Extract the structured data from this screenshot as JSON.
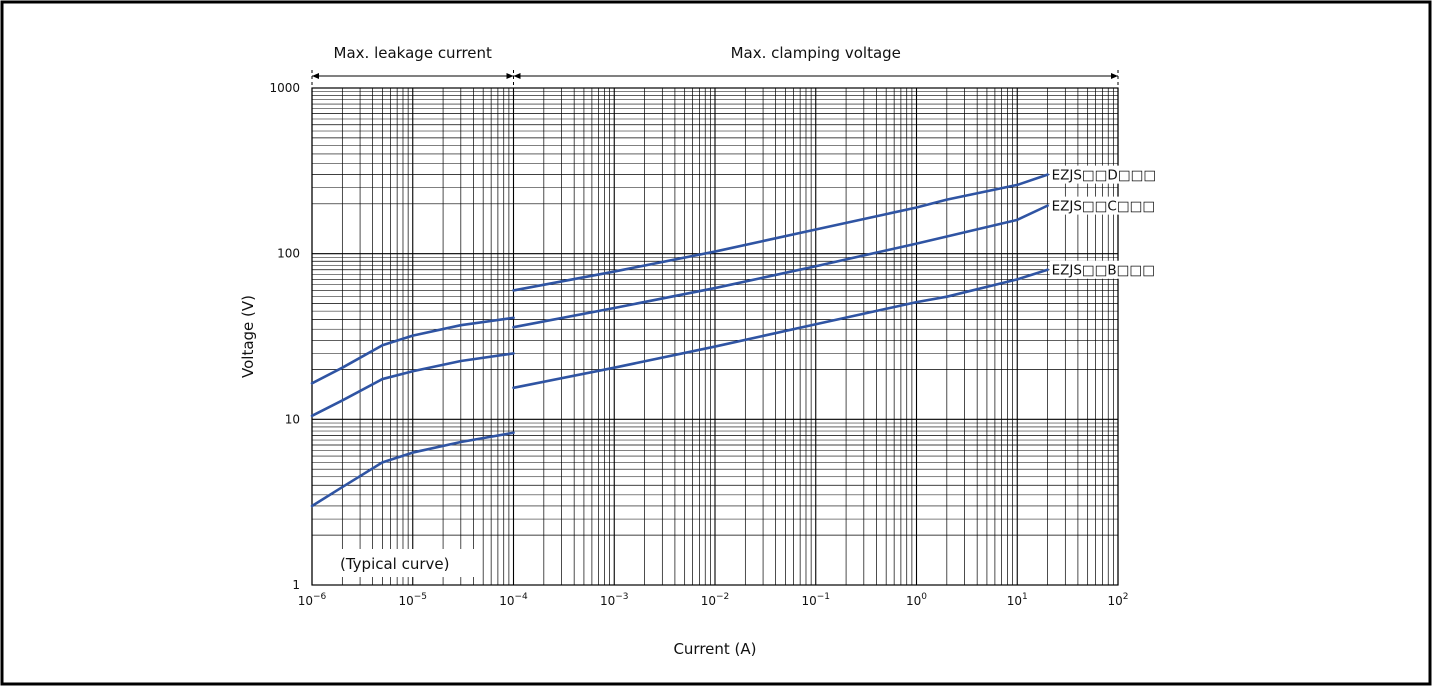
{
  "chart_data": {
    "type": "line",
    "xlabel": "Current (A)",
    "ylabel": "Voltage (V)",
    "x_scale": "log",
    "y_scale": "log",
    "xlim": [
      1e-06,
      100
    ],
    "ylim": [
      1,
      1000
    ],
    "x_ticks": [
      {
        "base": "10",
        "exp": "−6"
      },
      {
        "base": "10",
        "exp": "−5"
      },
      {
        "base": "10",
        "exp": "−4"
      },
      {
        "base": "10",
        "exp": "−3"
      },
      {
        "base": "10",
        "exp": "−2"
      },
      {
        "base": "10",
        "exp": "−1"
      },
      {
        "base": "10",
        "exp": "0"
      },
      {
        "base": "10",
        "exp": "1"
      },
      {
        "base": "10",
        "exp": "2"
      }
    ],
    "y_ticks": [
      "1",
      "10",
      "100",
      "1000"
    ],
    "grid": true,
    "regions": [
      {
        "label": "Max. leakage current",
        "x_range": [
          1e-06,
          0.0001
        ]
      },
      {
        "label": "Max. clamping voltage",
        "x_range": [
          0.0001,
          100
        ]
      }
    ],
    "note": "(Typical curve)",
    "series": [
      {
        "name": "EZJS□□D□□□",
        "color": "#2f54a3",
        "segments": [
          [
            [
              1e-06,
              16.5
            ],
            [
              2e-06,
              20.5
            ],
            [
              5e-06,
              28
            ],
            [
              1e-05,
              32
            ],
            [
              3e-05,
              37
            ],
            [
              0.0001,
              41
            ]
          ],
          [
            [
              0.0001,
              60
            ],
            [
              0.001,
              78
            ],
            [
              0.01,
              103
            ],
            [
              0.1,
              140
            ],
            [
              1,
              190
            ],
            [
              2,
              212
            ],
            [
              10,
              260
            ],
            [
              20,
              300
            ]
          ]
        ]
      },
      {
        "name": "EZJS□□C□□□",
        "color": "#2f54a3",
        "segments": [
          [
            [
              1e-06,
              10.5
            ],
            [
              2e-06,
              13
            ],
            [
              5e-06,
              17.5
            ],
            [
              1e-05,
              19.5
            ],
            [
              3e-05,
              22.5
            ],
            [
              0.0001,
              25
            ]
          ],
          [
            [
              0.0001,
              36
            ],
            [
              0.001,
              47
            ],
            [
              0.01,
              62
            ],
            [
              0.1,
              84
            ],
            [
              1,
              115
            ],
            [
              2,
              127
            ],
            [
              10,
              160
            ],
            [
              20,
              195
            ]
          ]
        ]
      },
      {
        "name": "EZJS□□B□□□",
        "color": "#2f54a3",
        "segments": [
          [
            [
              1e-06,
              3.0
            ],
            [
              2e-06,
              3.9
            ],
            [
              5e-06,
              5.5
            ],
            [
              1e-05,
              6.3
            ],
            [
              3e-05,
              7.3
            ],
            [
              0.0001,
              8.3
            ]
          ],
          [
            [
              0.0001,
              15.5
            ],
            [
              0.001,
              20.5
            ],
            [
              0.01,
              27.5
            ],
            [
              0.1,
              37.5
            ],
            [
              1,
              51
            ],
            [
              2,
              55
            ],
            [
              10,
              70
            ],
            [
              20,
              80
            ]
          ]
        ]
      }
    ]
  }
}
